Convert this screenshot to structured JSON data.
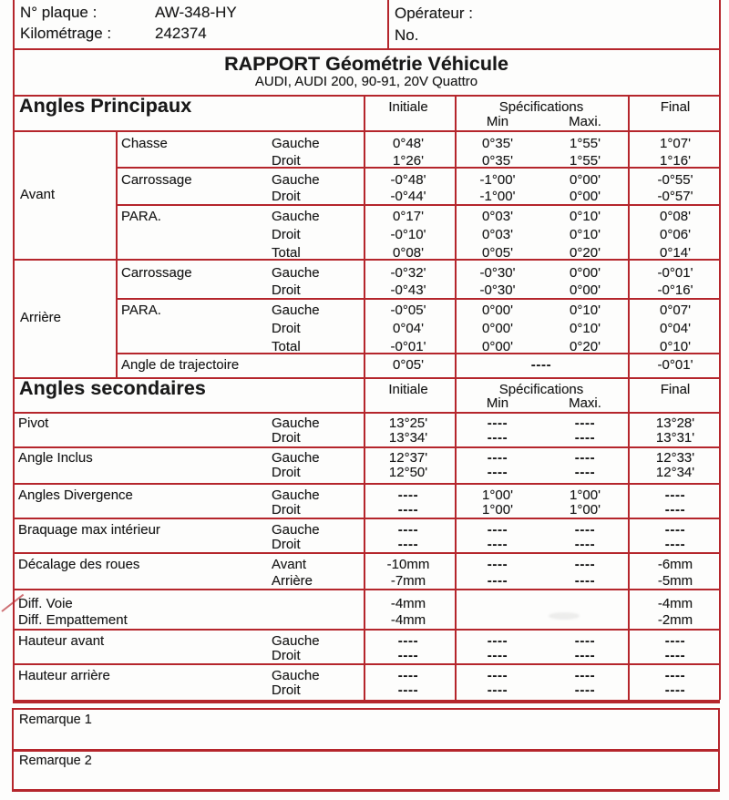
{
  "header": {
    "plate_label": "N° plaque :",
    "plate_value": "AW-348-HY",
    "mileage_label": "Kilométrage :",
    "mileage_value": "242374",
    "operator_label": "Opérateur :",
    "operator_no": "No."
  },
  "title": {
    "main": "RAPPORT Géométrie Véhicule",
    "subtitle": "AUDI, AUDI 200, 90-91, 20V Quattro"
  },
  "column_headers": {
    "initial": "Initiale",
    "spec": "Spécifications",
    "min": "Min",
    "max": "Maxi.",
    "final": "Final"
  },
  "sections": [
    {
      "title": "Angles Principaux",
      "groups": [
        {
          "label": "Avant",
          "blocks": [
            {
              "label": "Chasse",
              "rows": [
                {
                  "side": "Gauche",
                  "init": "0°48'",
                  "min": "0°35'",
                  "max": "1°55'",
                  "fin": "1°07'"
                },
                {
                  "side": "Droit",
                  "init": "1°26'",
                  "min": "0°35'",
                  "max": "1°55'",
                  "fin": "1°16'"
                }
              ]
            },
            {
              "label": "Carrossage",
              "rows": [
                {
                  "side": "Gauche",
                  "init": "-0°48'",
                  "min": "-1°00'",
                  "max": "0°00'",
                  "fin": "-0°55'"
                },
                {
                  "side": "Droit",
                  "init": "-0°44'",
                  "min": "-1°00'",
                  "max": "0°00'",
                  "fin": "-0°57'"
                }
              ]
            },
            {
              "label": "PARA.",
              "rows": [
                {
                  "side": "Gauche",
                  "init": "0°17'",
                  "min": "0°03'",
                  "max": "0°10'",
                  "fin": "0°08'"
                },
                {
                  "side": "Droit",
                  "init": "-0°10'",
                  "min": "0°03'",
                  "max": "0°10'",
                  "fin": "0°06'"
                },
                {
                  "side": "Total",
                  "init": "0°08'",
                  "min": "0°05'",
                  "max": "0°20'",
                  "fin": "0°14'"
                }
              ]
            }
          ]
        },
        {
          "label": "Arrière",
          "blocks": [
            {
              "label": "Carrossage",
              "rows": [
                {
                  "side": "Gauche",
                  "init": "-0°32'",
                  "min": "-0°30'",
                  "max": "0°00'",
                  "fin": "-0°01'"
                },
                {
                  "side": "Droit",
                  "init": "-0°43'",
                  "min": "-0°30'",
                  "max": "0°00'",
                  "fin": "-0°16'"
                }
              ]
            },
            {
              "label": "PARA.",
              "rows": [
                {
                  "side": "Gauche",
                  "init": "-0°05'",
                  "min": "0°00'",
                  "max": "0°10'",
                  "fin": "0°07'"
                },
                {
                  "side": "Droit",
                  "init": "0°04'",
                  "min": "0°00'",
                  "max": "0°10'",
                  "fin": "0°04'"
                },
                {
                  "side": "Total",
                  "init": "-0°01'",
                  "min": "0°00'",
                  "max": "0°20'",
                  "fin": "0°10'"
                }
              ]
            },
            {
              "label": "Angle de trajectoire",
              "rows": [
                {
                  "side": "",
                  "init": "0°05'",
                  "spec": "----",
                  "fin": "-0°01'"
                }
              ]
            }
          ]
        }
      ]
    },
    {
      "title": "Angles secondaires",
      "blocks": [
        {
          "label": "Pivot",
          "rows": [
            {
              "side": "Gauche",
              "init": "13°25'",
              "min": "----",
              "max": "----",
              "fin": "13°28'"
            },
            {
              "side": "Droit",
              "init": "13°34'",
              "min": "----",
              "max": "----",
              "fin": "13°31'"
            }
          ]
        },
        {
          "label": "Angle Inclus",
          "rows": [
            {
              "side": "Gauche",
              "init": "12°37'",
              "min": "----",
              "max": "----",
              "fin": "12°33'"
            },
            {
              "side": "Droit",
              "init": "12°50'",
              "min": "----",
              "max": "----",
              "fin": "12°34'"
            }
          ]
        },
        {
          "label": "Angles Divergence",
          "rows": [
            {
              "side": "Gauche",
              "init": "----",
              "min": "1°00'",
              "max": "1°00'",
              "fin": "----"
            },
            {
              "side": "Droit",
              "init": "----",
              "min": "1°00'",
              "max": "1°00'",
              "fin": "----"
            }
          ]
        },
        {
          "label": "Braquage max intérieur",
          "rows": [
            {
              "side": "Gauche",
              "init": "----",
              "min": "----",
              "max": "----",
              "fin": "----"
            },
            {
              "side": "Droit",
              "init": "----",
              "min": "----",
              "max": "----",
              "fin": "----"
            }
          ]
        },
        {
          "label": "Décalage des roues",
          "rows": [
            {
              "side": "Avant",
              "init": "-10mm",
              "min": "----",
              "max": "----",
              "fin": "-6mm"
            },
            {
              "side": "Arrière",
              "init": "-7mm",
              "min": "----",
              "max": "----",
              "fin": "-5mm"
            }
          ]
        },
        {
          "label": "",
          "rows": [
            {
              "label": "Diff. Voie",
              "side": "",
              "init": "-4mm",
              "fin": "-4mm"
            },
            {
              "label": "Diff. Empattement",
              "side": "",
              "init": "-4mm",
              "fin": "-2mm"
            }
          ]
        },
        {
          "label": "Hauteur avant",
          "rows": [
            {
              "side": "Gauche",
              "init": "----",
              "min": "----",
              "max": "----",
              "fin": "----"
            },
            {
              "side": "Droit",
              "init": "----",
              "min": "----",
              "max": "----",
              "fin": "----"
            }
          ]
        },
        {
          "label": "Hauteur arrière",
          "rows": [
            {
              "side": "Gauche",
              "init": "----",
              "min": "----",
              "max": "----",
              "fin": "----"
            },
            {
              "side": "Droit",
              "init": "----",
              "min": "----",
              "max": "----",
              "fin": "----"
            }
          ]
        }
      ]
    }
  ],
  "remarks": [
    "Remarque 1",
    "Remarque 2"
  ],
  "colors": {
    "line": "#b5262c",
    "text": "#191919",
    "background": "#fdfdfc"
  }
}
